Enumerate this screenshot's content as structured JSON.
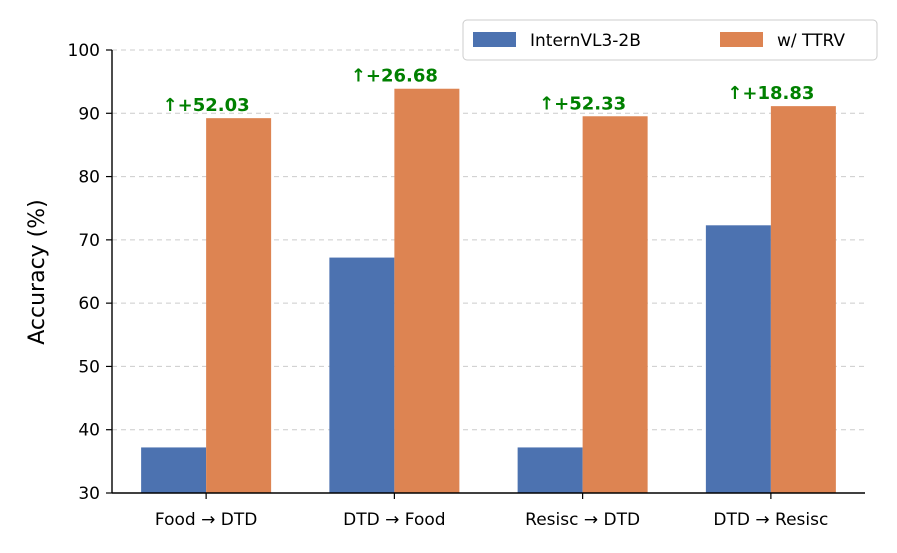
{
  "chart_data": {
    "type": "bar",
    "title": "",
    "xlabel": "",
    "ylabel": "Accuracy (%)",
    "ylim": [
      30,
      100
    ],
    "yticks": [
      "30",
      "40",
      "50",
      "60",
      "70",
      "80",
      "90",
      "100"
    ],
    "grid": "horizontal dashed",
    "legend_position": "top-right",
    "categories": [
      "Food → DTD",
      "DTD → Food",
      "Resisc → DTD",
      "DTD → Resisc"
    ],
    "series": [
      {
        "name": "InternVL3-2B",
        "color": "#4C72B0",
        "values": [
          37.2,
          67.2,
          37.2,
          72.3
        ]
      },
      {
        "name": "w/ TTRV",
        "color": "#DD8452",
        "values": [
          89.23,
          93.88,
          89.53,
          91.13
        ]
      }
    ],
    "annotations": [
      "↑+52.03",
      "↑+26.68",
      "↑+52.33",
      "↑+18.83"
    ],
    "annotation_color": "#008000"
  }
}
